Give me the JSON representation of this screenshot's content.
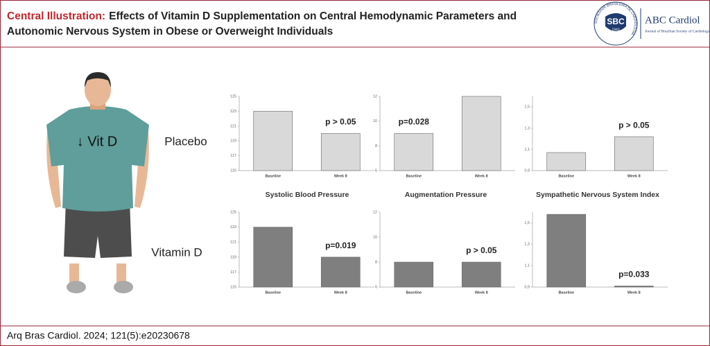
{
  "header": {
    "label": "Central Illustration:",
    "title": "Effects of Vitamin D Supplementation on Central Hemodynamic Parameters and",
    "title_line2": "Autonomic Nervous System in Obese or Overweight Individuals"
  },
  "logo": {
    "ring": "SOCIEDADE BRASILEIRA DE CARDIOLOGIA",
    "abbr": "SBC",
    "year": "1943",
    "journal": "ABC Cardiol",
    "journal_full": "Journal of Brazilian Society of Cardiology"
  },
  "figure_label": "↓ Vit D",
  "row_labels": [
    "Placebo",
    "Vitamin D"
  ],
  "column_titles": [
    "Systolic Blood Pressure",
    "Augmentation Pressure",
    "Sympathetic Nervous System Index"
  ],
  "footer": "Arq Bras Cardiol.  2024; 121(5):e20230678",
  "chart_data": [
    {
      "type": "bar",
      "categories": [
        "Baseline",
        "Week 8"
      ],
      "values": [
        123,
        120
      ],
      "color": "#d9d9d9",
      "ylim": [
        115,
        125
      ],
      "yticks": [
        115,
        117,
        119,
        121,
        123,
        125
      ],
      "annotation": "p > 0.05"
    },
    {
      "type": "bar",
      "categories": [
        "Baseline",
        "Week 8"
      ],
      "values": [
        9,
        12
      ],
      "color": "#d9d9d9",
      "ylim": [
        6,
        12
      ],
      "yticks": [
        6,
        8,
        10,
        12
      ],
      "annotation": "p=0.028"
    },
    {
      "type": "bar",
      "categories": [
        "Baseline",
        "Week 8"
      ],
      "values": [
        1.07,
        1.22
      ],
      "color": "#d9d9d9",
      "ylim": [
        0.9,
        1.6
      ],
      "yticks": [
        {
          "value": 0.9,
          "label": "0,9"
        },
        {
          "value": 1.1,
          "label": "1,1"
        },
        {
          "value": 1.3,
          "label": "1,3"
        },
        {
          "value": 1.5,
          "label": "1,5"
        }
      ],
      "annotation": "p > 0.05"
    },
    {
      "type": "bar",
      "categories": [
        "Baseline",
        "Week 8"
      ],
      "values": [
        123,
        119
      ],
      "color": "#7f7f7f",
      "ylim": [
        115,
        125
      ],
      "yticks": [
        115,
        117,
        119,
        121,
        123,
        125
      ],
      "annotation": "p=0.019"
    },
    {
      "type": "bar",
      "categories": [
        "Baseline",
        "Week 8"
      ],
      "values": [
        8,
        8
      ],
      "color": "#7f7f7f",
      "ylim": [
        6,
        12
      ],
      "yticks": [
        6,
        8,
        10,
        12
      ],
      "annotation": "p > 0.05"
    },
    {
      "type": "bar",
      "categories": [
        "Baseline",
        "Week 8"
      ],
      "values": [
        1.58,
        0.91
      ],
      "color": "#7f7f7f",
      "ylim": [
        0.9,
        1.6
      ],
      "yticks": [
        {
          "value": 0.9,
          "label": "0,9"
        },
        {
          "value": 1.1,
          "label": "1,1"
        },
        {
          "value": 1.3,
          "label": "1,3"
        },
        {
          "value": 1.5,
          "label": "1,5"
        }
      ],
      "annotation": "p=0.033"
    }
  ]
}
